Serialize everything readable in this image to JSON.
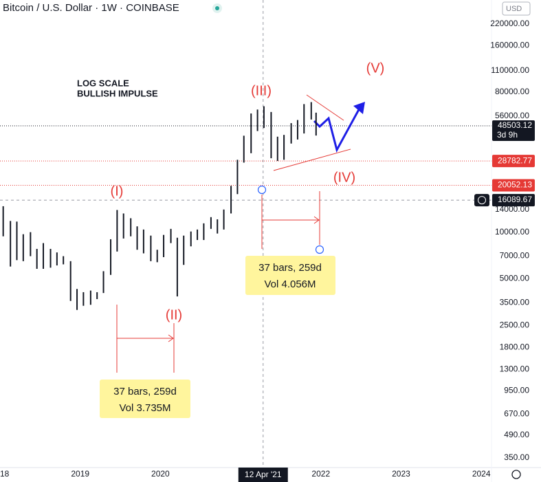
{
  "chart_data": {
    "type": "ohlc-bars",
    "title": "Bitcoin / U.S. Dollar · 1W · COINBASE",
    "currency": "USD",
    "log_scale": true,
    "ylim": [
      303,
      314500
    ],
    "xlim": [
      2018,
      2024.127
    ],
    "yticks": [
      {
        "value": 220000,
        "label": "220000.00"
      },
      {
        "value": 160000,
        "label": "160000.00"
      },
      {
        "value": 110000,
        "label": "110000.00"
      },
      {
        "value": 80000,
        "label": "80000.00"
      },
      {
        "value": 56000,
        "label": "56000.00"
      },
      {
        "value": 14000,
        "label": "14000.00"
      },
      {
        "value": 10000,
        "label": "10000.00"
      },
      {
        "value": 7000,
        "label": "7000.00"
      },
      {
        "value": 5000,
        "label": "5000.00"
      },
      {
        "value": 3500,
        "label": "3500.00"
      },
      {
        "value": 2500,
        "label": "2500.00"
      },
      {
        "value": 1800,
        "label": "1800.00"
      },
      {
        "value": 1300,
        "label": "1300.00"
      },
      {
        "value": 950,
        "label": "950.00"
      },
      {
        "value": 670,
        "label": "670.00"
      },
      {
        "value": 490,
        "label": "490.00"
      },
      {
        "value": 350,
        "label": "350.00"
      }
    ],
    "xticks": [
      {
        "value": 2018,
        "label": "18"
      },
      2019,
      2020,
      2022,
      2023,
      {
        "value": 2024,
        "label": "2024"
      }
    ],
    "crosshair": {
      "x": 2021.28,
      "label": "12 Apr '21"
    },
    "price_lines": [
      {
        "value": 48503.12,
        "color": "#131722",
        "style": "dotted",
        "note": "3d 9h"
      },
      {
        "value": 28782.77,
        "color": "#e53935",
        "style": "dotted"
      },
      {
        "value": 20052.13,
        "color": "#e53935",
        "style": "dotted"
      },
      {
        "value": 16089.67,
        "color": "#131722",
        "style": "dashed"
      }
    ],
    "x": [
      2018.04,
      2018.13,
      2018.21,
      2018.29,
      2018.38,
      2018.46,
      2018.54,
      2018.63,
      2018.71,
      2018.79,
      2018.88,
      2018.96,
      2019.04,
      2019.13,
      2019.21,
      2019.29,
      2019.38,
      2019.46,
      2019.54,
      2019.63,
      2019.71,
      2019.79,
      2019.88,
      2019.96,
      2020.04,
      2020.13,
      2020.21,
      2020.29,
      2020.38,
      2020.46,
      2020.54,
      2020.63,
      2020.71,
      2020.79,
      2020.88,
      2020.96,
      2021.04,
      2021.13,
      2021.21,
      2021.29,
      2021.38,
      2021.46,
      2021.54,
      2021.63,
      2021.71,
      2021.79,
      2021.88,
      2021.94
    ],
    "series": [
      {
        "color": "#131722",
        "high": [
          14700,
          11800,
          11700,
          9700,
          10000,
          7800,
          8500,
          7800,
          7400,
          7000,
          6500,
          4300,
          4100,
          4200,
          4100,
          5600,
          9000,
          13900,
          13200,
          12300,
          10900,
          10400,
          9500,
          7700,
          9600,
          10500,
          9200,
          9500,
          10100,
          10400,
          11400,
          12500,
          12100,
          14000,
          19900,
          29300,
          41900,
          58300,
          61800,
          64900,
          59600,
          41300,
          42400,
          50500,
          52900,
          67000,
          69000,
          59000
        ],
        "low": [
          9400,
          6000,
          6600,
          6500,
          7000,
          5800,
          5800,
          5900,
          6100,
          6200,
          3600,
          3150,
          3350,
          3400,
          3700,
          4050,
          5300,
          7500,
          9100,
          9400,
          7700,
          7300,
          6500,
          6400,
          6900,
          8500,
          3850,
          6150,
          8100,
          8900,
          8900,
          10500,
          9800,
          10400,
          13200,
          17600,
          28100,
          32300,
          44900,
          47000,
          30000,
          28800,
          29300,
          37300,
          39600,
          43300,
          53300,
          42000
        ]
      }
    ],
    "annotations": {
      "note": [
        "LOG SCALE",
        "BULLISH IMPULSE"
      ],
      "waves": [
        "(I)",
        "(II)",
        "(III)",
        "(IV)",
        "(V)"
      ],
      "measure_1": [
        "37 bars, 259d",
        "Vol 3.735M"
      ],
      "measure_2": [
        "37 bars, 259d",
        "Vol 4.056M"
      ]
    }
  }
}
